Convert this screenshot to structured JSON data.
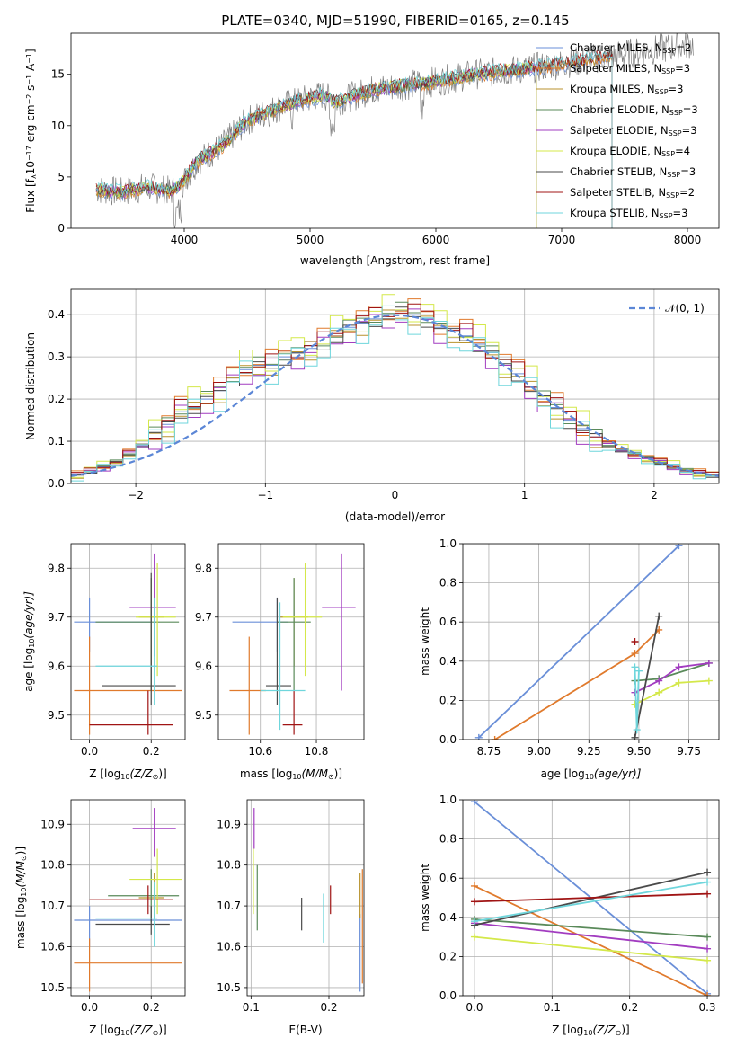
{
  "figure": {
    "title": "PLATE=0340, MJD=51990, FIBERID=0165, z=0.145"
  },
  "colors": {
    "Chabrier MILES": "#6a8fd8",
    "Salpeter MILES": "#e07a2c",
    "Kroupa MILES": "#b8922c",
    "Chabrier ELODIE": "#5a8a5a",
    "Salpeter ELODIE": "#a23cc0",
    "Kroupa ELODIE": "#d4e84a",
    "Chabrier STELIB": "#4a4a4a",
    "Salpeter STELIB": "#a01414",
    "Kroupa STELIB": "#6fd6dc",
    "data": "#808080",
    "normal": "#5b86d6"
  },
  "chart_data": [
    {
      "id": "spectrum",
      "type": "line",
      "title": "PLATE=0340, MJD=51990, FIBERID=0165, z=0.145",
      "xlabel": "wavelength [Angstrom, rest frame]",
      "ylabel_main": "Flux [f",
      "ylabel_tail": "10",
      "ylabel_rest": " erg cm",
      "ylabel_end": " s",
      "ylabel_fin": " A",
      "xlim": [
        3100,
        8250
      ],
      "ylim": [
        0,
        19
      ],
      "xticks": [
        4000,
        5000,
        6000,
        7000,
        8000
      ],
      "yticks": [
        0,
        5,
        10,
        15
      ],
      "grid": false,
      "legend_position": "top-right",
      "legend": [
        {
          "name": "Chabrier MILES",
          "nssp": "2"
        },
        {
          "name": "Salpeter MILES",
          "nssp": "3"
        },
        {
          "name": "Kroupa MILES",
          "nssp": "3"
        },
        {
          "name": "Chabrier ELODIE",
          "nssp": "3"
        },
        {
          "name": "Salpeter ELODIE",
          "nssp": "3"
        },
        {
          "name": "Kroupa ELODIE",
          "nssp": "4"
        },
        {
          "name": "Chabrier STELIB",
          "nssp": "3"
        },
        {
          "name": "Salpeter STELIB",
          "nssp": "2"
        },
        {
          "name": "Kroupa STELIB",
          "nssp": "3"
        }
      ],
      "continuum": [
        [
          3300,
          3.8
        ],
        [
          3500,
          3.5
        ],
        [
          3700,
          4.0
        ],
        [
          3900,
          3.6
        ],
        [
          3990,
          4.5
        ],
        [
          4100,
          6.5
        ],
        [
          4300,
          8.0
        ],
        [
          4500,
          10.5
        ],
        [
          4800,
          12.0
        ],
        [
          5100,
          13.0
        ],
        [
          5200,
          12.3
        ],
        [
          5500,
          13.5
        ],
        [
          5800,
          14.0
        ],
        [
          6000,
          14.3
        ],
        [
          6300,
          15.0
        ],
        [
          6700,
          15.5
        ],
        [
          7000,
          16.0
        ],
        [
          7400,
          16.8
        ],
        [
          7800,
          17.5
        ],
        [
          8050,
          18.0
        ]
      ],
      "model_end": {
        "MILES": 7400,
        "ELODIE": 6800,
        "STELIB": 7400
      }
    },
    {
      "id": "residuals",
      "type": "line",
      "xlabel": "(data-model)/error",
      "ylabel": "Normed distribution",
      "xlim": [
        -2.5,
        2.5
      ],
      "ylim": [
        0,
        0.46
      ],
      "xticks": [
        -2,
        -1,
        0,
        1,
        2
      ],
      "yticks": [
        0.0,
        0.1,
        0.2,
        0.3,
        0.4
      ],
      "grid": true,
      "legend_position": "top-right",
      "legend_label": "𝒩(0, 1)",
      "bin_width": 0.1,
      "hist_values": [
        0.02,
        0.03,
        0.04,
        0.05,
        0.07,
        0.09,
        0.12,
        0.14,
        0.17,
        0.18,
        0.2,
        0.22,
        0.25,
        0.27,
        0.28,
        0.28,
        0.3,
        0.31,
        0.32,
        0.33,
        0.35,
        0.37,
        0.38,
        0.39,
        0.4,
        0.41,
        0.4,
        0.39,
        0.37,
        0.36,
        0.35,
        0.33,
        0.31,
        0.28,
        0.26,
        0.23,
        0.2,
        0.18,
        0.15,
        0.13,
        0.11,
        0.09,
        0.08,
        0.07,
        0.06,
        0.05,
        0.04,
        0.03,
        0.025,
        0.02
      ],
      "series_offsets": [
        0.0,
        0.02,
        -0.015,
        0.01,
        -0.02,
        0.025,
        -0.01,
        0.015,
        -0.025
      ]
    },
    {
      "id": "age-vs-Z",
      "type": "scatter",
      "xlabel": "Z [log",
      "xlabel_sub": "10",
      "xlabel_tail": "(Z/Z",
      "xlabel_end": ")]",
      "ylabel": "age  [log",
      "ylabel_sub": "10",
      "ylabel_tail": "(age/yr)]",
      "xlim": [
        -0.06,
        0.31
      ],
      "ylim": [
        9.45,
        9.85
      ],
      "xticks": [
        0.0,
        0.2
      ],
      "yticks": [
        9.5,
        9.6,
        9.7,
        9.8
      ],
      "grid": true,
      "points": [
        {
          "s": "Chabrier MILES",
          "x": 0.0,
          "y": 9.69,
          "xlo": -0.05,
          "xhi": 0.2,
          "ylo": 9.63,
          "yhi": 9.74
        },
        {
          "s": "Salpeter MILES",
          "x": 0.0,
          "y": 9.55,
          "xlo": -0.05,
          "xhi": 0.3,
          "ylo": 9.46,
          "yhi": 9.66
        },
        {
          "s": "Kroupa MILES",
          "x": 0.2,
          "y": 9.7,
          "xlo": 0.16,
          "xhi": 0.24,
          "ylo": 9.6,
          "yhi": 9.78
        },
        {
          "s": "Chabrier ELODIE",
          "x": 0.2,
          "y": 9.69,
          "xlo": 0.02,
          "xhi": 0.29,
          "ylo": 9.55,
          "yhi": 9.78
        },
        {
          "s": "Salpeter ELODIE",
          "x": 0.21,
          "y": 9.72,
          "xlo": 0.13,
          "xhi": 0.28,
          "ylo": 9.62,
          "yhi": 9.83
        },
        {
          "s": "Kroupa ELODIE",
          "x": 0.22,
          "y": 9.7,
          "xlo": 0.15,
          "xhi": 0.28,
          "ylo": 9.58,
          "yhi": 9.81
        },
        {
          "s": "Chabrier STELIB",
          "x": 0.2,
          "y": 9.56,
          "xlo": 0.04,
          "xhi": 0.28,
          "ylo": 9.52,
          "yhi": 9.79
        },
        {
          "s": "Salpeter STELIB",
          "x": 0.19,
          "y": 9.48,
          "xlo": 0.0,
          "xhi": 0.27,
          "ylo": 9.46,
          "yhi": 9.55
        },
        {
          "s": "Kroupa STELIB",
          "x": 0.21,
          "y": 9.6,
          "xlo": 0.02,
          "xhi": 0.22,
          "ylo": 9.52,
          "yhi": 9.74
        }
      ]
    },
    {
      "id": "age-vs-mass",
      "type": "scatter",
      "xlabel": "mass [log",
      "xlabel_sub": "10",
      "xlabel_tail": "(M/M",
      "xlabel_end": ")]",
      "xlim": [
        10.45,
        10.97
      ],
      "ylim": [
        9.45,
        9.85
      ],
      "xticks": [
        10.6,
        10.8
      ],
      "yticks": [
        9.5,
        9.6,
        9.7,
        9.8
      ],
      "grid": true,
      "points": [
        {
          "s": "Chabrier MILES",
          "x": 10.66,
          "y": 9.69,
          "xlo": 10.5,
          "xhi": 10.7,
          "ylo": 9.63,
          "yhi": 9.74
        },
        {
          "s": "Salpeter MILES",
          "x": 10.56,
          "y": 9.55,
          "xlo": 10.49,
          "xhi": 10.62,
          "ylo": 9.46,
          "yhi": 9.66
        },
        {
          "s": "Kroupa MILES",
          "x": 10.72,
          "y": 9.7,
          "xlo": 10.67,
          "xhi": 10.77,
          "ylo": 9.6,
          "yhi": 9.78
        },
        {
          "s": "Chabrier ELODIE",
          "x": 10.72,
          "y": 9.69,
          "xlo": 10.66,
          "xhi": 10.78,
          "ylo": 9.55,
          "yhi": 9.78
        },
        {
          "s": "Salpeter ELODIE",
          "x": 10.89,
          "y": 9.72,
          "xlo": 10.82,
          "xhi": 10.94,
          "ylo": 9.55,
          "yhi": 9.83
        },
        {
          "s": "Kroupa ELODIE",
          "x": 10.76,
          "y": 9.7,
          "xlo": 10.68,
          "xhi": 10.82,
          "ylo": 9.58,
          "yhi": 9.81
        },
        {
          "s": "Chabrier STELIB",
          "x": 10.66,
          "y": 9.56,
          "xlo": 10.62,
          "xhi": 10.71,
          "ylo": 9.52,
          "yhi": 9.74
        },
        {
          "s": "Salpeter STELIB",
          "x": 10.72,
          "y": 9.48,
          "xlo": 10.68,
          "xhi": 10.75,
          "ylo": 9.46,
          "yhi": 9.55
        },
        {
          "s": "Kroupa STELIB",
          "x": 10.67,
          "y": 9.55,
          "xlo": 10.6,
          "xhi": 10.76,
          "ylo": 9.47,
          "yhi": 9.73
        }
      ]
    },
    {
      "id": "massweight-vs-age",
      "type": "line",
      "xlabel": "age  [log",
      "xlabel_sub": "10",
      "xlabel_tail": "(age/yr)]",
      "ylabel": "mass weight",
      "xlim": [
        8.62,
        9.9
      ],
      "ylim": [
        0,
        1
      ],
      "xticks": [
        8.75,
        9.0,
        9.25,
        9.5,
        9.75
      ],
      "xtick_labels": [
        "8.75",
        "9.00",
        "9.25",
        "9.50",
        "9.75"
      ],
      "yticks": [
        0.0,
        0.2,
        0.4,
        0.6,
        0.8,
        1.0
      ],
      "grid": true,
      "series": [
        {
          "name": "Chabrier MILES",
          "x": [
            8.7,
            9.7
          ],
          "values": [
            0.01,
            0.99
          ]
        },
        {
          "name": "Salpeter MILES",
          "x": [
            8.78,
            9.48,
            9.6
          ],
          "values": [
            0.0,
            0.44,
            0.56
          ]
        },
        {
          "name": "Chabrier ELODIE",
          "x": [
            9.48,
            9.6,
            9.85
          ],
          "values": [
            0.3,
            0.31,
            0.39
          ]
        },
        {
          "name": "Salpeter ELODIE",
          "x": [
            9.48,
            9.6,
            9.7,
            9.85
          ],
          "values": [
            0.24,
            0.3,
            0.37,
            0.39
          ]
        },
        {
          "name": "Kroupa ELODIE",
          "x": [
            9.48,
            9.6,
            9.7,
            9.85
          ],
          "values": [
            0.18,
            0.24,
            0.29,
            0.3
          ]
        },
        {
          "name": "Chabrier STELIB",
          "x": [
            9.48,
            9.6
          ],
          "values": [
            0.01,
            0.63
          ]
        },
        {
          "name": "Salpeter STELIB",
          "x": [
            9.48
          ],
          "values": [
            0.5
          ]
        },
        {
          "name": "Kroupa STELIB",
          "x": [
            9.48,
            9.49,
            9.5
          ],
          "values": [
            0.37,
            0.05,
            0.35
          ]
        }
      ]
    },
    {
      "id": "mass-vs-Z",
      "type": "scatter",
      "xlabel": "Z [log",
      "xlabel_sub": "10",
      "xlabel_tail": "(Z/Z",
      "xlabel_end": ")]",
      "ylabel": "mass [log",
      "ylabel_sub": "10",
      "ylabel_tail": "(M/M",
      "ylabel_end": ")]",
      "xlim": [
        -0.06,
        0.31
      ],
      "ylim": [
        10.48,
        10.96
      ],
      "xticks": [
        0.0,
        0.2
      ],
      "yticks": [
        10.5,
        10.6,
        10.7,
        10.8,
        10.9
      ],
      "grid": true,
      "points": [
        {
          "s": "Chabrier MILES",
          "x": 0.0,
          "y": 10.665,
          "xlo": -0.05,
          "xhi": 0.3,
          "ylo": 10.6,
          "yhi": 10.7
        },
        {
          "s": "Salpeter MILES",
          "x": 0.0,
          "y": 10.56,
          "xlo": -0.05,
          "xhi": 0.3,
          "ylo": 10.49,
          "yhi": 10.62
        },
        {
          "s": "Kroupa MILES",
          "x": 0.21,
          "y": 10.72,
          "xlo": 0.16,
          "xhi": 0.24,
          "ylo": 10.67,
          "yhi": 10.78
        },
        {
          "s": "Chabrier ELODIE",
          "x": 0.2,
          "y": 10.725,
          "xlo": 0.06,
          "xhi": 0.29,
          "ylo": 10.66,
          "yhi": 10.79
        },
        {
          "s": "Salpeter ELODIE",
          "x": 0.21,
          "y": 10.89,
          "xlo": 0.14,
          "xhi": 0.28,
          "ylo": 10.82,
          "yhi": 10.94
        },
        {
          "s": "Kroupa ELODIE",
          "x": 0.22,
          "y": 10.765,
          "xlo": 0.13,
          "xhi": 0.3,
          "ylo": 10.68,
          "yhi": 10.84
        },
        {
          "s": "Chabrier STELIB",
          "x": 0.2,
          "y": 10.655,
          "xlo": 0.02,
          "xhi": 0.26,
          "ylo": 10.63,
          "yhi": 10.7
        },
        {
          "s": "Salpeter STELIB",
          "x": 0.19,
          "y": 10.715,
          "xlo": 0.0,
          "xhi": 0.27,
          "ylo": 10.68,
          "yhi": 10.75
        },
        {
          "s": "Kroupa STELIB",
          "x": 0.21,
          "y": 10.67,
          "xlo": 0.02,
          "xhi": 0.22,
          "ylo": 10.6,
          "yhi": 10.76
        }
      ]
    },
    {
      "id": "mass-vs-EBV",
      "type": "scatter",
      "xlabel": "E(B-V)",
      "xlim": [
        0.095,
        0.245
      ],
      "ylim": [
        10.48,
        10.96
      ],
      "xticks": [
        0.1,
        0.2
      ],
      "yticks": [
        10.5,
        10.6,
        10.7,
        10.8,
        10.9
      ],
      "grid": true,
      "points": [
        {
          "s": "Chabrier MILES",
          "x": 0.24,
          "y": 10.6,
          "ylo": 10.49,
          "yhi": 10.68
        },
        {
          "s": "Salpeter MILES",
          "x": 0.243,
          "y": 10.56,
          "ylo": 10.51,
          "yhi": 10.79
        },
        {
          "s": "Kroupa MILES",
          "x": 0.24,
          "y": 10.72,
          "ylo": 10.67,
          "yhi": 10.78
        },
        {
          "s": "Chabrier ELODIE",
          "x": 0.108,
          "y": 10.73,
          "ylo": 10.64,
          "yhi": 10.8
        },
        {
          "s": "Salpeter ELODIE",
          "x": 0.104,
          "y": 10.89,
          "ylo": 10.84,
          "yhi": 10.94
        },
        {
          "s": "Kroupa ELODIE",
          "x": 0.103,
          "y": 10.77,
          "ylo": 10.68,
          "yhi": 10.84
        },
        {
          "s": "Chabrier STELIB",
          "x": 0.165,
          "y": 10.66,
          "ylo": 10.64,
          "yhi": 10.72
        },
        {
          "s": "Salpeter STELIB",
          "x": 0.202,
          "y": 10.72,
          "ylo": 10.68,
          "yhi": 10.75
        },
        {
          "s": "Kroupa STELIB",
          "x": 0.193,
          "y": 10.67,
          "ylo": 10.61,
          "yhi": 10.73
        }
      ]
    },
    {
      "id": "massweight-vs-Z",
      "type": "line",
      "xlabel": "Z [log",
      "xlabel_sub": "10",
      "xlabel_tail": "(Z/Z",
      "xlabel_end": ")]",
      "ylabel": "mass weight",
      "xlim": [
        -0.015,
        0.315
      ],
      "ylim": [
        0,
        1
      ],
      "xticks": [
        0.0,
        0.1,
        0.2,
        0.3
      ],
      "xtick_labels": [
        "0.0",
        "0.1",
        "0.2",
        "0.3"
      ],
      "yticks": [
        0.0,
        0.2,
        0.4,
        0.6,
        0.8,
        1.0
      ],
      "grid": true,
      "series": [
        {
          "name": "Chabrier MILES",
          "x": [
            0.0,
            0.3
          ],
          "values": [
            0.99,
            0.01
          ]
        },
        {
          "name": "Salpeter MILES",
          "x": [
            0.0,
            0.3
          ],
          "values": [
            0.56,
            0.0
          ]
        },
        {
          "name": "Chabrier ELODIE",
          "x": [
            0.0,
            0.3
          ],
          "values": [
            0.39,
            0.3
          ]
        },
        {
          "name": "Salpeter ELODIE",
          "x": [
            0.0,
            0.3
          ],
          "values": [
            0.37,
            0.24
          ]
        },
        {
          "name": "Kroupa ELODIE",
          "x": [
            0.0,
            0.3
          ],
          "values": [
            0.3,
            0.18
          ]
        },
        {
          "name": "Chabrier STELIB",
          "x": [
            0.0,
            0.3
          ],
          "values": [
            0.36,
            0.63
          ]
        },
        {
          "name": "Salpeter STELIB",
          "x": [
            0.0,
            0.3
          ],
          "values": [
            0.48,
            0.52
          ]
        },
        {
          "name": "Kroupa STELIB",
          "x": [
            0.0,
            0.3
          ],
          "values": [
            0.38,
            0.58
          ]
        }
      ]
    }
  ]
}
